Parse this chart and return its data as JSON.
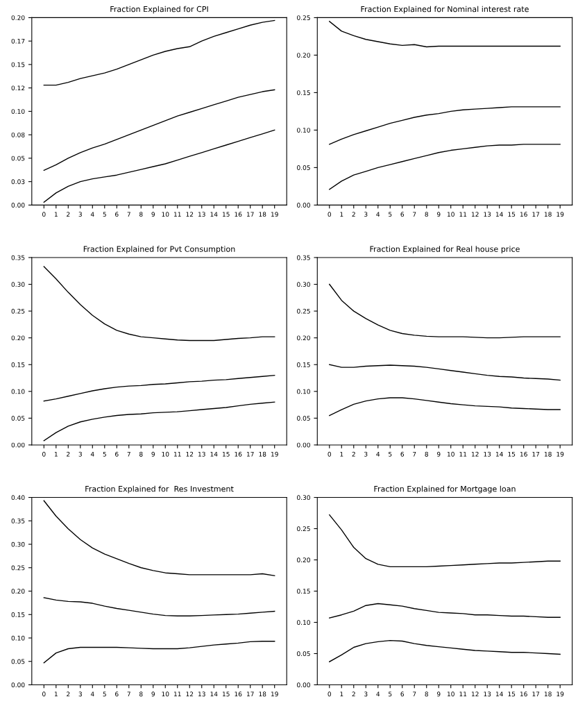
{
  "chart_data": [
    {
      "type": "line",
      "title": "Fraction Explained for CPI",
      "categories": [
        "0",
        "1",
        "2",
        "3",
        "4",
        "5",
        "6",
        "7",
        "8",
        "9",
        "10",
        "11",
        "12",
        "13",
        "14",
        "15",
        "16",
        "17",
        "18",
        "19"
      ],
      "ylim": [
        0,
        0.2
      ],
      "yticks": [
        {
          "value": 0,
          "label": "0.00"
        },
        {
          "value": 0.025,
          "label": "0.03"
        },
        {
          "value": 0.05,
          "label": "0.05"
        },
        {
          "value": 0.075,
          "label": "0.08"
        },
        {
          "value": 0.1,
          "label": "0.10"
        },
        {
          "value": 0.125,
          "label": "0.12"
        },
        {
          "value": 0.15,
          "label": "0.15"
        },
        {
          "value": 0.175,
          "label": "0.17"
        },
        {
          "value": 0.2,
          "label": "0.20"
        }
      ],
      "grid": false,
      "marker": "none",
      "line_style": "solid",
      "series": [
        {
          "color": "#000000",
          "values": [
            0.128,
            0.128,
            0.131,
            0.135,
            0.138,
            0.141,
            0.145,
            0.15,
            0.155,
            0.16,
            0.164,
            0.167,
            0.169,
            0.175,
            0.18,
            0.184,
            0.188,
            0.192,
            0.195,
            0.197
          ]
        },
        {
          "color": "#000000",
          "values": [
            0.037,
            0.043,
            0.05,
            0.056,
            0.061,
            0.065,
            0.07,
            0.075,
            0.08,
            0.085,
            0.09,
            0.095,
            0.099,
            0.103,
            0.107,
            0.111,
            0.115,
            0.118,
            0.121,
            0.123
          ]
        },
        {
          "color": "#000000",
          "values": [
            0.003,
            0.013,
            0.02,
            0.025,
            0.028,
            0.03,
            0.032,
            0.035,
            0.038,
            0.041,
            0.044,
            0.048,
            0.052,
            0.056,
            0.06,
            0.064,
            0.068,
            0.072,
            0.076,
            0.08
          ]
        }
      ]
    },
    {
      "type": "line",
      "title": "Fraction Explained for Nominal interest rate",
      "categories": [
        "0",
        "1",
        "2",
        "3",
        "4",
        "5",
        "6",
        "7",
        "8",
        "9",
        "10",
        "11",
        "12",
        "13",
        "14",
        "15",
        "16",
        "17",
        "18",
        "19"
      ],
      "ylim": [
        0,
        0.25
      ],
      "yticks": [
        {
          "value": 0,
          "label": "0.00"
        },
        {
          "value": 0.05,
          "label": "0.05"
        },
        {
          "value": 0.1,
          "label": "0.10"
        },
        {
          "value": 0.15,
          "label": "0.15"
        },
        {
          "value": 0.2,
          "label": "0.20"
        },
        {
          "value": 0.25,
          "label": "0.25"
        }
      ],
      "grid": false,
      "marker": "none",
      "line_style": "solid",
      "series": [
        {
          "color": "#000000",
          "values": [
            0.245,
            0.232,
            0.226,
            0.221,
            0.218,
            0.215,
            0.213,
            0.214,
            0.211,
            0.212,
            0.212,
            0.212,
            0.212,
            0.212,
            0.212,
            0.212,
            0.212,
            0.212,
            0.212,
            0.212
          ]
        },
        {
          "color": "#000000",
          "values": [
            0.081,
            0.088,
            0.094,
            0.099,
            0.104,
            0.109,
            0.113,
            0.117,
            0.12,
            0.122,
            0.125,
            0.127,
            0.128,
            0.129,
            0.13,
            0.131,
            0.131,
            0.131,
            0.131,
            0.131
          ]
        },
        {
          "color": "#000000",
          "values": [
            0.021,
            0.032,
            0.04,
            0.045,
            0.05,
            0.054,
            0.058,
            0.062,
            0.066,
            0.07,
            0.073,
            0.075,
            0.077,
            0.079,
            0.08,
            0.08,
            0.081,
            0.081,
            0.081,
            0.081
          ]
        }
      ]
    },
    {
      "type": "line",
      "title": "Fraction Explained for Pvt Consumption",
      "categories": [
        "0",
        "1",
        "2",
        "3",
        "4",
        "5",
        "6",
        "7",
        "8",
        "9",
        "10",
        "11",
        "12",
        "13",
        "14",
        "15",
        "16",
        "17",
        "18",
        "19"
      ],
      "ylim": [
        0,
        0.35
      ],
      "yticks": [
        {
          "value": 0,
          "label": "0.00"
        },
        {
          "value": 0.05,
          "label": "0.05"
        },
        {
          "value": 0.1,
          "label": "0.10"
        },
        {
          "value": 0.15,
          "label": "0.15"
        },
        {
          "value": 0.2,
          "label": "0.20"
        },
        {
          "value": 0.25,
          "label": "0.25"
        },
        {
          "value": 0.3,
          "label": "0.30"
        },
        {
          "value": 0.35,
          "label": "0.35"
        }
      ],
      "grid": false,
      "marker": "none",
      "line_style": "solid",
      "series": [
        {
          "color": "#000000",
          "values": [
            0.333,
            0.31,
            0.285,
            0.262,
            0.242,
            0.226,
            0.214,
            0.207,
            0.202,
            0.2,
            0.198,
            0.196,
            0.195,
            0.195,
            0.195,
            0.197,
            0.199,
            0.2,
            0.202,
            0.202
          ]
        },
        {
          "color": "#000000",
          "values": [
            0.082,
            0.086,
            0.091,
            0.096,
            0.101,
            0.105,
            0.108,
            0.11,
            0.111,
            0.113,
            0.114,
            0.116,
            0.118,
            0.119,
            0.121,
            0.122,
            0.124,
            0.126,
            0.128,
            0.13
          ]
        },
        {
          "color": "#000000",
          "values": [
            0.008,
            0.023,
            0.035,
            0.043,
            0.048,
            0.052,
            0.055,
            0.057,
            0.058,
            0.06,
            0.061,
            0.062,
            0.064,
            0.066,
            0.068,
            0.07,
            0.073,
            0.076,
            0.078,
            0.08
          ]
        }
      ]
    },
    {
      "type": "line",
      "title": "Fraction Explained for Real house price",
      "categories": [
        "0",
        "1",
        "2",
        "3",
        "4",
        "5",
        "6",
        "7",
        "8",
        "9",
        "10",
        "11",
        "12",
        "13",
        "14",
        "15",
        "16",
        "17",
        "18",
        "19"
      ],
      "ylim": [
        0,
        0.35
      ],
      "yticks": [
        {
          "value": 0,
          "label": "0.00"
        },
        {
          "value": 0.05,
          "label": "0.05"
        },
        {
          "value": 0.1,
          "label": "0.10"
        },
        {
          "value": 0.15,
          "label": "0.15"
        },
        {
          "value": 0.2,
          "label": "0.20"
        },
        {
          "value": 0.25,
          "label": "0.25"
        },
        {
          "value": 0.3,
          "label": "0.30"
        },
        {
          "value": 0.35,
          "label": "0.35"
        }
      ],
      "grid": false,
      "marker": "none",
      "line_style": "solid",
      "series": [
        {
          "color": "#000000",
          "values": [
            0.3,
            0.27,
            0.25,
            0.236,
            0.224,
            0.214,
            0.208,
            0.205,
            0.203,
            0.202,
            0.202,
            0.202,
            0.201,
            0.2,
            0.2,
            0.201,
            0.202,
            0.202,
            0.202,
            0.202
          ]
        },
        {
          "color": "#000000",
          "values": [
            0.15,
            0.145,
            0.145,
            0.147,
            0.148,
            0.149,
            0.148,
            0.147,
            0.145,
            0.142,
            0.139,
            0.136,
            0.133,
            0.13,
            0.128,
            0.127,
            0.125,
            0.124,
            0.123,
            0.121
          ]
        },
        {
          "color": "#000000",
          "values": [
            0.055,
            0.066,
            0.076,
            0.082,
            0.086,
            0.088,
            0.088,
            0.086,
            0.083,
            0.08,
            0.077,
            0.075,
            0.073,
            0.072,
            0.071,
            0.069,
            0.068,
            0.067,
            0.066,
            0.066
          ]
        }
      ]
    },
    {
      "type": "line",
      "title": "Fraction Explained for  Res Investment",
      "categories": [
        "0",
        "1",
        "2",
        "3",
        "4",
        "5",
        "6",
        "7",
        "8",
        "9",
        "10",
        "11",
        "12",
        "13",
        "14",
        "15",
        "16",
        "17",
        "18",
        "19"
      ],
      "ylim": [
        0,
        0.4
      ],
      "yticks": [
        {
          "value": 0,
          "label": "0.00"
        },
        {
          "value": 0.05,
          "label": "0.05"
        },
        {
          "value": 0.1,
          "label": "0.10"
        },
        {
          "value": 0.15,
          "label": "0.15"
        },
        {
          "value": 0.2,
          "label": "0.20"
        },
        {
          "value": 0.25,
          "label": "0.25"
        },
        {
          "value": 0.3,
          "label": "0.30"
        },
        {
          "value": 0.35,
          "label": "0.35"
        },
        {
          "value": 0.4,
          "label": "0.40"
        }
      ],
      "grid": false,
      "marker": "none",
      "line_style": "solid",
      "series": [
        {
          "color": "#000000",
          "values": [
            0.393,
            0.36,
            0.333,
            0.31,
            0.292,
            0.279,
            0.269,
            0.259,
            0.25,
            0.244,
            0.239,
            0.237,
            0.235,
            0.235,
            0.235,
            0.235,
            0.235,
            0.235,
            0.237,
            0.233
          ]
        },
        {
          "color": "#000000",
          "values": [
            0.186,
            0.181,
            0.178,
            0.177,
            0.174,
            0.168,
            0.163,
            0.159,
            0.155,
            0.151,
            0.148,
            0.147,
            0.147,
            0.148,
            0.149,
            0.15,
            0.151,
            0.153,
            0.155,
            0.157
          ]
        },
        {
          "color": "#000000",
          "values": [
            0.047,
            0.068,
            0.077,
            0.08,
            0.08,
            0.08,
            0.08,
            0.079,
            0.078,
            0.077,
            0.077,
            0.077,
            0.079,
            0.082,
            0.085,
            0.087,
            0.089,
            0.092,
            0.093,
            0.093
          ]
        }
      ]
    },
    {
      "type": "line",
      "title": "Fraction Explained for Mortgage loan",
      "categories": [
        "0",
        "1",
        "2",
        "3",
        "4",
        "5",
        "6",
        "7",
        "8",
        "9",
        "10",
        "11",
        "12",
        "13",
        "14",
        "15",
        "16",
        "17",
        "18",
        "19"
      ],
      "ylim": [
        0,
        0.3
      ],
      "yticks": [
        {
          "value": 0,
          "label": "0.00"
        },
        {
          "value": 0.05,
          "label": "0.05"
        },
        {
          "value": 0.1,
          "label": "0.10"
        },
        {
          "value": 0.15,
          "label": "0.15"
        },
        {
          "value": 0.2,
          "label": "0.20"
        },
        {
          "value": 0.25,
          "label": "0.25"
        },
        {
          "value": 0.3,
          "label": "0.30"
        }
      ],
      "grid": false,
      "marker": "none",
      "line_style": "solid",
      "series": [
        {
          "color": "#000000",
          "values": [
            0.272,
            0.248,
            0.22,
            0.202,
            0.193,
            0.189,
            0.189,
            0.189,
            0.189,
            0.19,
            0.191,
            0.192,
            0.193,
            0.194,
            0.195,
            0.195,
            0.196,
            0.197,
            0.198,
            0.198
          ]
        },
        {
          "color": "#000000",
          "values": [
            0.107,
            0.112,
            0.118,
            0.127,
            0.13,
            0.128,
            0.126,
            0.122,
            0.119,
            0.116,
            0.115,
            0.114,
            0.112,
            0.112,
            0.111,
            0.11,
            0.11,
            0.109,
            0.108,
            0.108
          ]
        },
        {
          "color": "#000000",
          "values": [
            0.037,
            0.048,
            0.06,
            0.066,
            0.069,
            0.071,
            0.07,
            0.066,
            0.063,
            0.061,
            0.059,
            0.057,
            0.055,
            0.054,
            0.053,
            0.052,
            0.052,
            0.051,
            0.05,
            0.049
          ]
        }
      ]
    }
  ]
}
